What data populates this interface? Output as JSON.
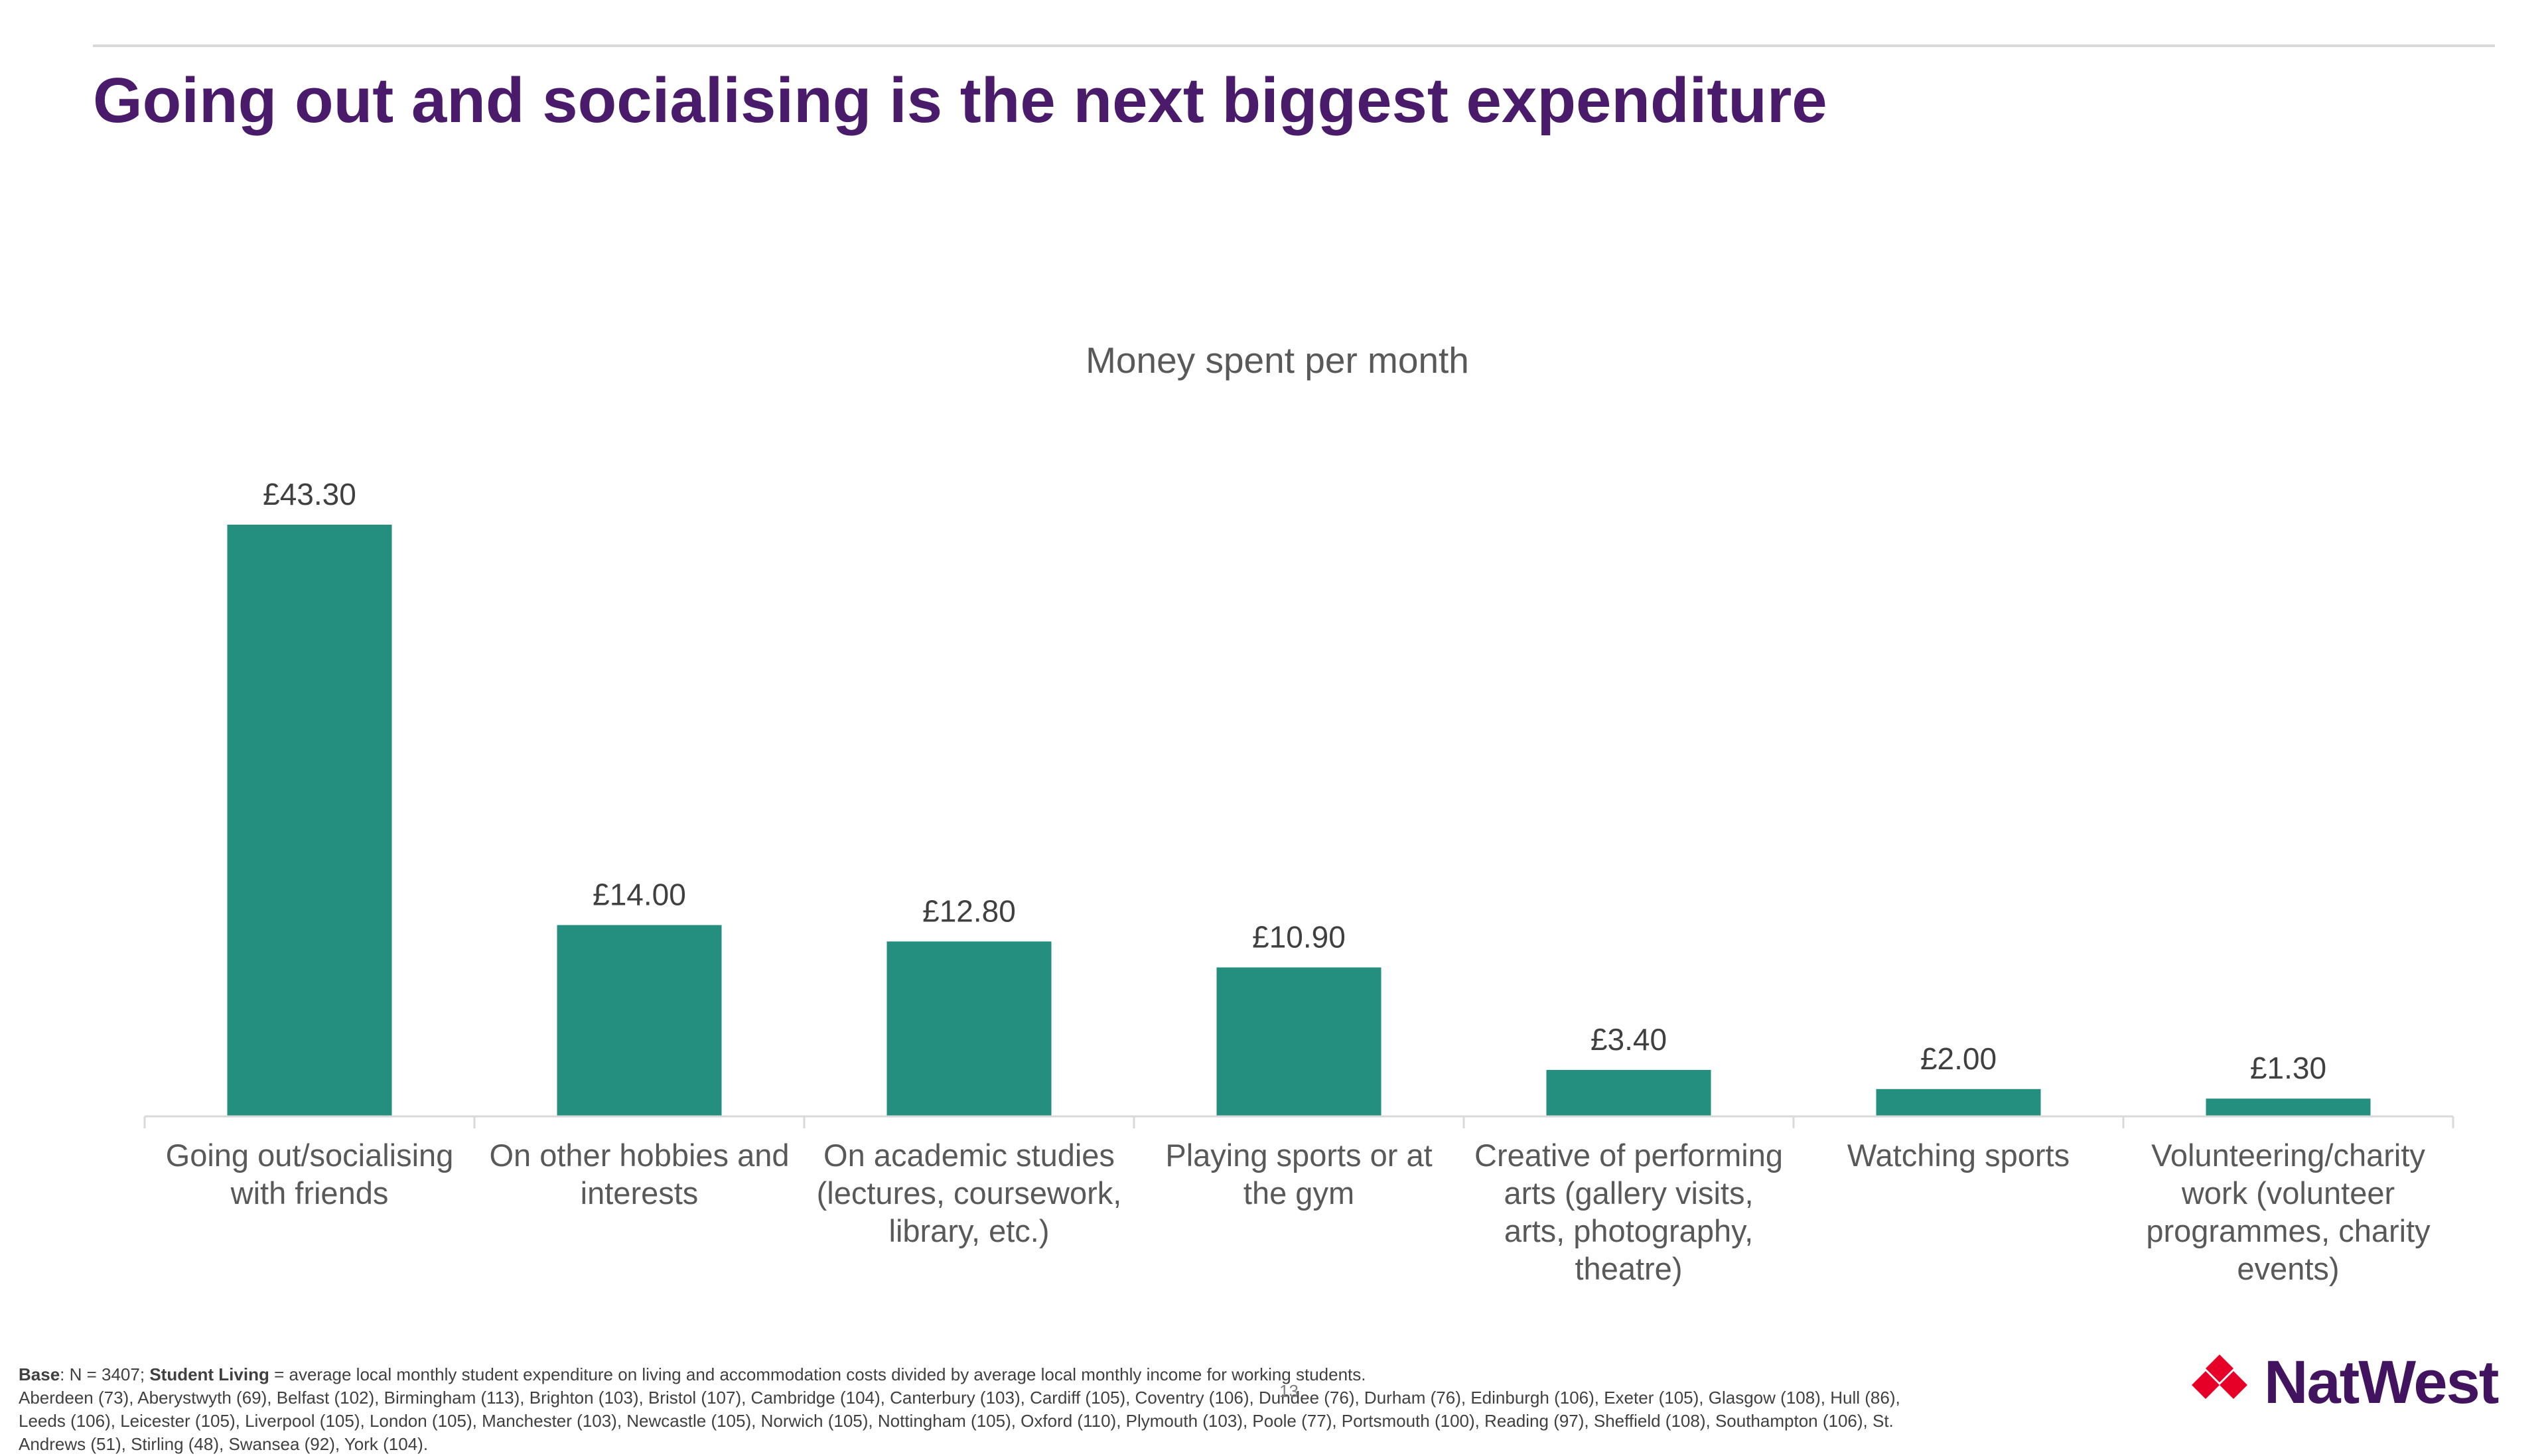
{
  "slide": {
    "title": "Going out and socialising is the next biggest expenditure",
    "page_number": "13"
  },
  "chart_data": {
    "type": "bar",
    "title": "Money spent per month",
    "xlabel": "",
    "ylabel": "",
    "currency_prefix": "£",
    "categories": [
      [
        "Going out/socialising",
        "with friends"
      ],
      [
        "On other hobbies and",
        "interests"
      ],
      [
        "On academic studies",
        "(lectures, coursework,",
        "library, etc.)"
      ],
      [
        "Playing sports or at",
        "the gym"
      ],
      [
        "Creative of performing",
        "arts (gallery visits,",
        "arts, photography,",
        "theatre)"
      ],
      [
        "Watching sports"
      ],
      [
        "Volunteering/charity",
        "work (volunteer",
        "programmes, charity",
        "events)"
      ]
    ],
    "values": [
      43.3,
      14.0,
      12.8,
      10.9,
      3.4,
      2.0,
      1.3
    ],
    "data_labels": [
      "£43.30",
      "£14.00",
      "£12.80",
      "£10.90",
      "£3.40",
      "£2.00",
      "£1.30"
    ],
    "ylim": [
      0,
      43.3
    ],
    "grid": false,
    "legend": "none",
    "colors": {
      "bar": "#258f7f",
      "axis": "#d9d9d9"
    }
  },
  "footnote": {
    "base_label": "Base",
    "base_text": ": N = 3407; ",
    "student_living_label": "Student Living",
    "student_living_text": " = average local monthly student expenditure on living and accommodation costs divided by average local monthly income for working students.",
    "line2": "Aberdeen (73), Aberystwyth (69), Belfast (102), Birmingham (113), Brighton (103), Bristol (107), Cambridge (104), Canterbury (103), Cardiff (105), Coventry (106), Dundee (76), Durham (76), Edinburgh (106), Exeter (105), Glasgow (108), Hull (86),",
    "line3": "Leeds (106), Leicester (105), Liverpool (105), London (105), Manchester (103), Newcastle (105), Norwich (105), Nottingham (105), Oxford (110), Plymouth (103), Poole (77), Portsmouth (100), Reading (97), Sheffield (108), Southampton (106), St.",
    "line4": "Andrews (51), Stirling (48), Swansea (92), York (104)."
  },
  "brand": {
    "name": "NatWest",
    "logo_color": "#e60028",
    "text_color": "#42145f"
  }
}
